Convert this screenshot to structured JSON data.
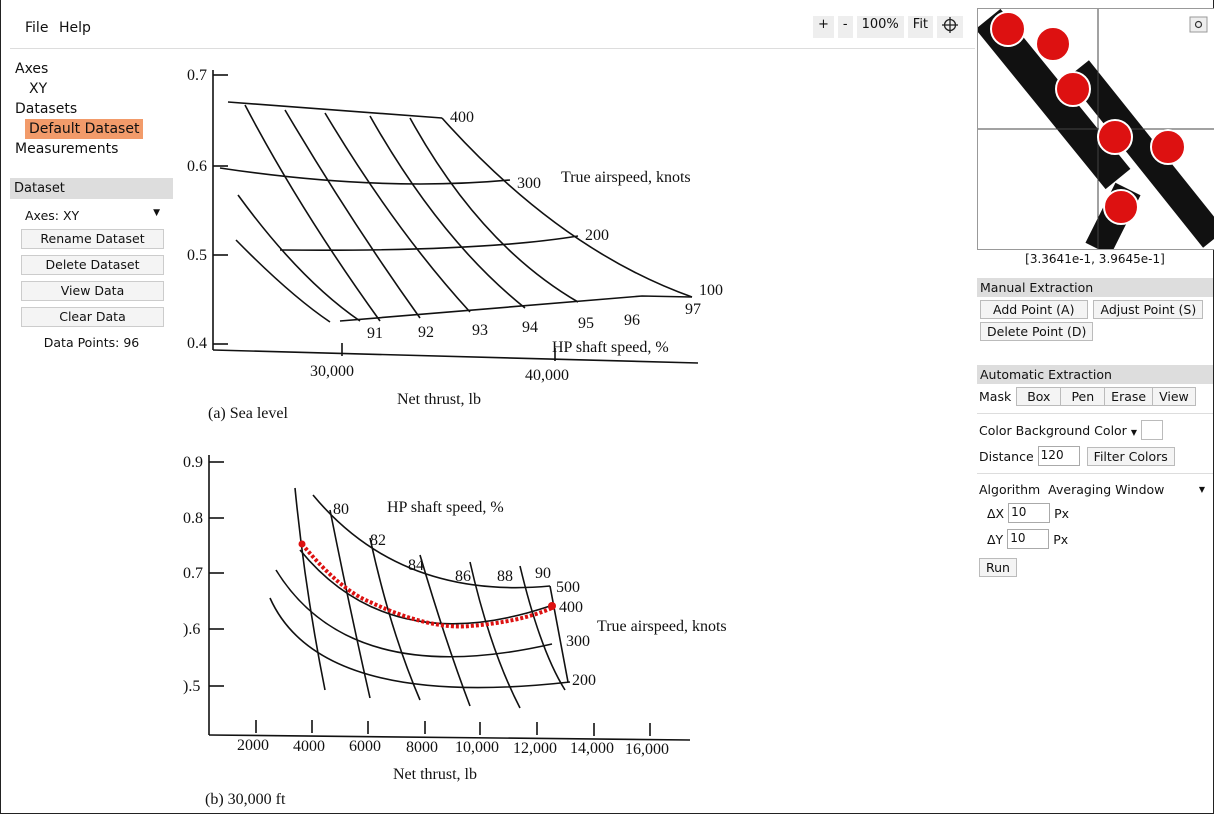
{
  "menu": {
    "file": "File",
    "help": "Help"
  },
  "zoom": {
    "plus": "+",
    "minus": "-",
    "level": "100%",
    "fit": "Fit"
  },
  "tree": {
    "axes": "Axes",
    "xy": "XY",
    "datasets": "Datasets",
    "default_dataset": "Default Dataset",
    "measurements": "Measurements"
  },
  "dataset_panel": {
    "header": "Dataset",
    "axes_label": "Axes:",
    "axes_value": "XY",
    "buttons": [
      "Rename Dataset",
      "Delete Dataset",
      "View Data",
      "Clear Data"
    ],
    "data_points": "Data Points: 96"
  },
  "magnifier": {
    "coords": "[3.3641e-1, 3.9645e-1]"
  },
  "manual": {
    "header": "Manual Extraction",
    "add": "Add Point (A)",
    "adjust": "Adjust Point (S)",
    "delete": "Delete Point (D)"
  },
  "auto": {
    "header": "Automatic Extraction",
    "mask_label": "Mask",
    "mask_buttons": [
      "Box",
      "Pen",
      "Erase",
      "View"
    ],
    "color_label": "Color",
    "color_value": "Background Color",
    "distance_label": "Distance",
    "distance_value": "120",
    "filter": "Filter Colors",
    "algorithm_label": "Algorithm",
    "algorithm_value": "Averaging Window",
    "dx_label": "ΔX",
    "dx_value": "10",
    "dy_label": "ΔY",
    "dy_value": "10",
    "unit": "Px",
    "run": "Run"
  },
  "figure_a": {
    "y_ticks": [
      "0.7",
      "0.6",
      "0.5",
      "0.4"
    ],
    "x_ticks": [
      "30,000",
      "40,000"
    ],
    "speed_labels": [
      "400",
      "300",
      "200",
      "100"
    ],
    "series_label": "True airspeed, knots",
    "hp_labels": [
      "91",
      "92",
      "93",
      "94",
      "95",
      "96",
      "97"
    ],
    "hp_title": "HP shaft speed, %",
    "xlabel": "Net thrust, lb",
    "caption": "(a) Sea level"
  },
  "figure_b": {
    "y_ticks": [
      "0.9",
      "0.8",
      "0.7",
      ").6",
      ").5"
    ],
    "x_ticks": [
      "2000",
      "4000",
      "6000",
      "8000",
      "10,000",
      "12,000",
      "14,000",
      "16,000"
    ],
    "hp_labels": [
      "80",
      "82",
      "84",
      "86",
      "88",
      "90"
    ],
    "hp_title": "HP shaft speed, %",
    "speed_labels": [
      "500",
      "400",
      "300",
      "200"
    ],
    "series_label": "True airspeed, knots",
    "xlabel": "Net thrust, lb",
    "caption": "(b) 30,000 ft"
  },
  "colors": {
    "selected": "#f29b6a",
    "point": "#dd1111"
  }
}
